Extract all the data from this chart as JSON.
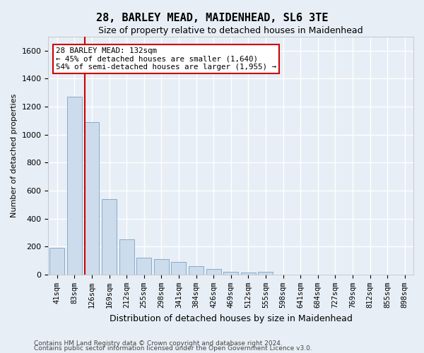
{
  "title": "28, BARLEY MEAD, MAIDENHEAD, SL6 3TE",
  "subtitle": "Size of property relative to detached houses in Maidenhead",
  "xlabel": "Distribution of detached houses by size in Maidenhead",
  "ylabel": "Number of detached properties",
  "categories": [
    "41sqm",
    "83sqm",
    "126sqm",
    "169sqm",
    "212sqm",
    "255sqm",
    "298sqm",
    "341sqm",
    "384sqm",
    "426sqm",
    "469sqm",
    "512sqm",
    "555sqm",
    "598sqm",
    "641sqm",
    "684sqm",
    "727sqm",
    "769sqm",
    "812sqm",
    "855sqm",
    "898sqm"
  ],
  "values": [
    190,
    1270,
    1090,
    540,
    250,
    120,
    110,
    90,
    60,
    40,
    20,
    15,
    20,
    0,
    0,
    0,
    0,
    0,
    0,
    0,
    0
  ],
  "bar_color": "#ccdcec",
  "bar_edge_color": "#88aacc",
  "background_color": "#e8eef5",
  "grid_color": "#ffffff",
  "annotation_box_color": "#ffffff",
  "annotation_border_color": "#cc0000",
  "property_line_color": "#cc0000",
  "property_label": "28 BARLEY MEAD: 132sqm",
  "annotation_line1": "← 45% of detached houses are smaller (1,640)",
  "annotation_line2": "54% of semi-detached houses are larger (1,955) →",
  "ylim": [
    0,
    1700
  ],
  "yticks": [
    0,
    200,
    400,
    600,
    800,
    1000,
    1200,
    1400,
    1600
  ],
  "property_line_x": 1.58,
  "footnote1": "Contains HM Land Registry data © Crown copyright and database right 2024.",
  "footnote2": "Contains public sector information licensed under the Open Government Licence v3.0."
}
